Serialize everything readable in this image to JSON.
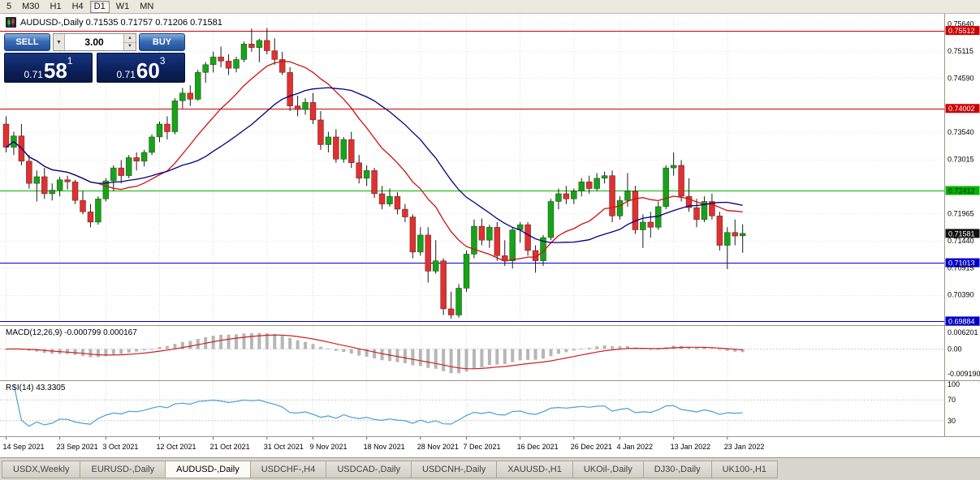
{
  "toolbar": {
    "periods": [
      {
        "label": "5"
      },
      {
        "label": "M30"
      },
      {
        "label": "H1"
      },
      {
        "label": "H4"
      },
      {
        "label": "D1",
        "active": true
      },
      {
        "label": "W1"
      },
      {
        "label": "MN"
      }
    ]
  },
  "chart": {
    "header_text": "AUDUSD-,Daily 0.71535 0.71757 0.71206 0.71581"
  },
  "one_click": {
    "sell_label": "SELL",
    "buy_label": "BUY",
    "volume": "3.00",
    "sell_price": {
      "small": "0.71",
      "big": "58",
      "sup": "1"
    },
    "buy_price": {
      "small": "0.71",
      "big": "60",
      "sup": "3"
    }
  },
  "icons": {
    "dropdown": "▼",
    "up": "▲",
    "down": "▼"
  },
  "chart_data": {
    "type": "candlestick",
    "symbol": "AUDUSD-",
    "timeframe": "Daily",
    "ohlc": {
      "open": 0.71535,
      "high": 0.71757,
      "low": 0.71206,
      "close": 0.71581
    },
    "y_range": [
      0.6982,
      0.7582
    ],
    "candles": [
      [
        0.737,
        0.7385,
        0.7315,
        0.7325
      ],
      [
        0.7325,
        0.7355,
        0.731,
        0.7347
      ],
      [
        0.7347,
        0.737,
        0.729,
        0.7298
      ],
      [
        0.7298,
        0.731,
        0.7245,
        0.7255
      ],
      [
        0.7255,
        0.728,
        0.722,
        0.7268
      ],
      [
        0.7268,
        0.7285,
        0.7225,
        0.7235
      ],
      [
        0.7235,
        0.7255,
        0.7222,
        0.7242
      ],
      [
        0.7242,
        0.7268,
        0.723,
        0.7262
      ],
      [
        0.7262,
        0.727,
        0.7243,
        0.7258
      ],
      [
        0.7258,
        0.7262,
        0.7215,
        0.7222
      ],
      [
        0.7222,
        0.724,
        0.7195,
        0.72
      ],
      [
        0.72,
        0.7215,
        0.717,
        0.718
      ],
      [
        0.718,
        0.723,
        0.7175,
        0.7225
      ],
      [
        0.7225,
        0.7265,
        0.722,
        0.726
      ],
      [
        0.726,
        0.729,
        0.724,
        0.7285
      ],
      [
        0.7285,
        0.73,
        0.7255,
        0.727
      ],
      [
        0.727,
        0.731,
        0.7265,
        0.7305
      ],
      [
        0.7305,
        0.7315,
        0.728,
        0.7298
      ],
      [
        0.7298,
        0.732,
        0.7288,
        0.7315
      ],
      [
        0.7315,
        0.735,
        0.731,
        0.7345
      ],
      [
        0.7345,
        0.7375,
        0.7335,
        0.737
      ],
      [
        0.737,
        0.7385,
        0.734,
        0.7355
      ],
      [
        0.7355,
        0.742,
        0.735,
        0.7415
      ],
      [
        0.7415,
        0.744,
        0.74,
        0.743
      ],
      [
        0.743,
        0.7445,
        0.7405,
        0.7418
      ],
      [
        0.7418,
        0.7475,
        0.7415,
        0.747
      ],
      [
        0.747,
        0.749,
        0.745,
        0.7485
      ],
      [
        0.7485,
        0.751,
        0.747,
        0.75
      ],
      [
        0.75,
        0.752,
        0.748,
        0.7492
      ],
      [
        0.7492,
        0.7505,
        0.7465,
        0.7478
      ],
      [
        0.7478,
        0.75,
        0.747,
        0.7495
      ],
      [
        0.7495,
        0.753,
        0.749,
        0.7525
      ],
      [
        0.7525,
        0.7555,
        0.751,
        0.7518
      ],
      [
        0.7518,
        0.7535,
        0.749,
        0.7532
      ],
      [
        0.7532,
        0.7556,
        0.7505,
        0.7512
      ],
      [
        0.7512,
        0.7536,
        0.7485,
        0.7495
      ],
      [
        0.7495,
        0.751,
        0.7465,
        0.747
      ],
      [
        0.747,
        0.748,
        0.7395,
        0.7405
      ],
      [
        0.7405,
        0.7425,
        0.7385,
        0.7398
      ],
      [
        0.7398,
        0.742,
        0.7388,
        0.7412
      ],
      [
        0.7412,
        0.743,
        0.737,
        0.7378
      ],
      [
        0.7378,
        0.7395,
        0.732,
        0.733
      ],
      [
        0.733,
        0.7355,
        0.7315,
        0.7345
      ],
      [
        0.7345,
        0.736,
        0.7295,
        0.7302
      ],
      [
        0.7302,
        0.7345,
        0.7295,
        0.734
      ],
      [
        0.734,
        0.7355,
        0.7285,
        0.7295
      ],
      [
        0.7295,
        0.731,
        0.7255,
        0.7265
      ],
      [
        0.7265,
        0.729,
        0.725,
        0.728
      ],
      [
        0.728,
        0.7285,
        0.7227,
        0.7235
      ],
      [
        0.7235,
        0.725,
        0.7205,
        0.7215
      ],
      [
        0.7215,
        0.7245,
        0.721,
        0.723
      ],
      [
        0.723,
        0.7238,
        0.7195,
        0.7205
      ],
      [
        0.7205,
        0.7215,
        0.718,
        0.719
      ],
      [
        0.719,
        0.7195,
        0.711,
        0.7122
      ],
      [
        0.7122,
        0.717,
        0.7115,
        0.7155
      ],
      [
        0.7155,
        0.717,
        0.7063,
        0.7085
      ],
      [
        0.7085,
        0.7145,
        0.708,
        0.7105
      ],
      [
        0.7105,
        0.711,
        0.7,
        0.7012
      ],
      [
        0.7012,
        0.7045,
        0.6993,
        0.7
      ],
      [
        0.7,
        0.706,
        0.6995,
        0.7052
      ],
      [
        0.7052,
        0.7125,
        0.7045,
        0.7118
      ],
      [
        0.7118,
        0.7185,
        0.711,
        0.7172
      ],
      [
        0.7172,
        0.7187,
        0.7135,
        0.7145
      ],
      [
        0.7145,
        0.7175,
        0.713,
        0.717
      ],
      [
        0.717,
        0.718,
        0.7105,
        0.7115
      ],
      [
        0.7115,
        0.7145,
        0.7095,
        0.7105
      ],
      [
        0.7105,
        0.717,
        0.709,
        0.7165
      ],
      [
        0.7165,
        0.718,
        0.714,
        0.7175
      ],
      [
        0.7175,
        0.718,
        0.7115,
        0.7125
      ],
      [
        0.7125,
        0.7135,
        0.7082,
        0.7105
      ],
      [
        0.7105,
        0.7155,
        0.7095,
        0.715
      ],
      [
        0.715,
        0.7225,
        0.7145,
        0.722
      ],
      [
        0.722,
        0.7245,
        0.7205,
        0.7235
      ],
      [
        0.7235,
        0.725,
        0.7215,
        0.7225
      ],
      [
        0.7225,
        0.7245,
        0.7215,
        0.724
      ],
      [
        0.724,
        0.7265,
        0.723,
        0.7258
      ],
      [
        0.7258,
        0.727,
        0.7235,
        0.7245
      ],
      [
        0.7245,
        0.7275,
        0.724,
        0.7265
      ],
      [
        0.7265,
        0.7278,
        0.7255,
        0.727
      ],
      [
        0.727,
        0.728,
        0.718,
        0.7192
      ],
      [
        0.7192,
        0.723,
        0.7185,
        0.7222
      ],
      [
        0.7222,
        0.7275,
        0.721,
        0.724
      ],
      [
        0.724,
        0.725,
        0.7157,
        0.7165
      ],
      [
        0.7165,
        0.7195,
        0.713,
        0.718
      ],
      [
        0.718,
        0.72,
        0.715,
        0.717
      ],
      [
        0.717,
        0.722,
        0.7165,
        0.721
      ],
      [
        0.721,
        0.729,
        0.7205,
        0.7285
      ],
      [
        0.7285,
        0.7315,
        0.727,
        0.729
      ],
      [
        0.729,
        0.73,
        0.722,
        0.723
      ],
      [
        0.723,
        0.7265,
        0.72,
        0.7208
      ],
      [
        0.7208,
        0.7225,
        0.717,
        0.7185
      ],
      [
        0.7185,
        0.723,
        0.718,
        0.722
      ],
      [
        0.722,
        0.7235,
        0.7185,
        0.7192
      ],
      [
        0.7192,
        0.72,
        0.7125,
        0.7135
      ],
      [
        0.7135,
        0.717,
        0.7089,
        0.716
      ],
      [
        0.716,
        0.7185,
        0.7135,
        0.7153
      ],
      [
        0.71535,
        0.71757,
        0.71206,
        0.71581
      ]
    ],
    "date_ticks": [
      {
        "label": "14 Sep 2021",
        "index": 0
      },
      {
        "label": "23 Sep 2021",
        "index": 7
      },
      {
        "label": "3 Oct 2021",
        "index": 13
      },
      {
        "label": "12 Oct 2021",
        "index": 20
      },
      {
        "label": "21 Oct 2021",
        "index": 27
      },
      {
        "label": "31 Oct 2021",
        "index": 34
      },
      {
        "label": "9 Nov 2021",
        "index": 40
      },
      {
        "label": "18 Nov 2021",
        "index": 47
      },
      {
        "label": "28 Nov 2021",
        "index": 54
      },
      {
        "label": "7 Dec 2021",
        "index": 60
      },
      {
        "label": "16 Dec 2021",
        "index": 67
      },
      {
        "label": "26 Dec 2021",
        "index": 74
      },
      {
        "label": "4 Jan 2022",
        "index": 80
      },
      {
        "label": "13 Jan 2022",
        "index": 87
      },
      {
        "label": "23 Jan 2022",
        "index": 94
      }
    ],
    "price_axis": [
      {
        "value": "0.75640",
        "style": "normal"
      },
      {
        "value": "0.75512",
        "style": "red"
      },
      {
        "value": "0.75115",
        "style": "normal"
      },
      {
        "value": "0.74590",
        "style": "normal"
      },
      {
        "value": "0.74002",
        "style": "red"
      },
      {
        "value": "0.73540",
        "style": "normal"
      },
      {
        "value": "0.73015",
        "style": "normal"
      },
      {
        "value": "0.72412",
        "style": "green"
      },
      {
        "value": "0.71965",
        "style": "normal"
      },
      {
        "value": "0.71581",
        "style": "current"
      },
      {
        "value": "0.71440",
        "style": "normal"
      },
      {
        "value": "0.71013",
        "style": "blue"
      },
      {
        "value": "0.70915",
        "style": "normal"
      },
      {
        "value": "0.70390",
        "style": "normal"
      },
      {
        "value": "0.69884",
        "style": "blue"
      }
    ],
    "h_lines": [
      {
        "price": 0.75512,
        "color": "#cc0000"
      },
      {
        "price": 0.74002,
        "color": "#cc0000"
      },
      {
        "price": 0.72412,
        "color": "#00b400"
      },
      {
        "price": 0.71013,
        "color": "#0000cc"
      },
      {
        "price": 0.69884,
        "color": "#0000cc"
      }
    ],
    "moving_averages": [
      {
        "period": 13,
        "color": "#cc1111"
      },
      {
        "period": 24,
        "color": "#000080"
      }
    ],
    "indicators": {
      "macd": {
        "header": "MACD(12,26,9) -0.000799 0.000167",
        "params": [
          12,
          26,
          9
        ],
        "current": [
          -0.000799,
          0.000167
        ],
        "axis": [
          "0.006201",
          "0.00",
          "-0.009190"
        ]
      },
      "rsi": {
        "header": "RSI(14) 43.3305",
        "period": 14,
        "current": 43.3305,
        "levels": [
          70,
          30
        ],
        "axis": [
          "100",
          "70",
          "30"
        ]
      }
    }
  },
  "tabs": [
    {
      "label": "USDX,Weekly"
    },
    {
      "label": "EURUSD-,Daily"
    },
    {
      "label": "AUDUSD-,Daily",
      "active": true
    },
    {
      "label": "USDCHF-,H4"
    },
    {
      "label": "USDCAD-,Daily"
    },
    {
      "label": "USDCNH-,Daily"
    },
    {
      "label": "XAUUSD-,H1"
    },
    {
      "label": "UKOil-,Daily"
    },
    {
      "label": "DJ30-,Daily"
    },
    {
      "label": "UK100-,H1"
    }
  ],
  "colors": {
    "candle_up": "#17a317",
    "candle_down": "#e03030",
    "macd_histogram": "#b6b6b6",
    "macd_signal": "#cc2222",
    "rsi_line": "#4a9fd8",
    "grid": "#dcdcdc"
  }
}
